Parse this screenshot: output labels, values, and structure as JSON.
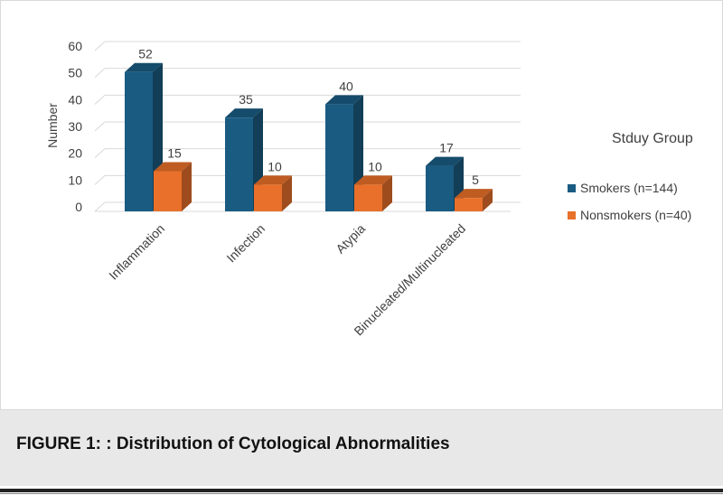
{
  "chart_data": {
    "type": "bar",
    "style": "3d-clustered-column",
    "categories": [
      "Inflammation",
      "Infection",
      "Atypia",
      "Binucleated/Multinucleated"
    ],
    "series": [
      {
        "name": "Smokers (n=144)",
        "values": [
          52,
          35,
          40,
          17
        ],
        "color": "#1a5b82"
      },
      {
        "name": "Nonsmokers (n=40)",
        "values": [
          15,
          10,
          10,
          5
        ],
        "color": "#e8702a"
      }
    ],
    "title": "",
    "xlabel": "",
    "ylabel": "Number",
    "ylim": [
      0,
      60
    ],
    "yticks": [
      0,
      10,
      20,
      30,
      40,
      50,
      60
    ],
    "grid": true,
    "data_labels": true,
    "legend": {
      "title": "Stduy Group",
      "placement": "right"
    }
  },
  "caption": {
    "text": "FIGURE 1: : Distribution of Cytological Abnormalities"
  }
}
